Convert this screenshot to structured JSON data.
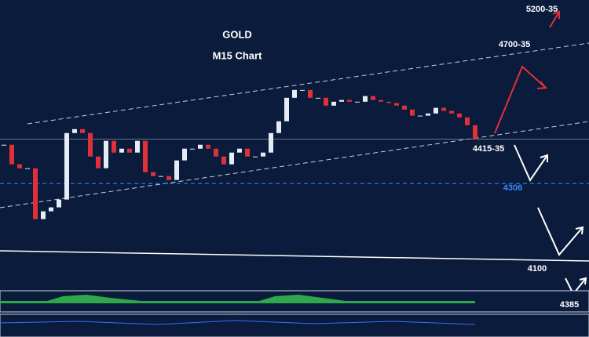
{
  "chart_data": {
    "type": "candlestick",
    "title": "GOLD",
    "subtitle": "M15 Chart",
    "values": [
      4395,
      4350,
      4341,
      4341,
      4224,
      4242,
      4251,
      4269,
      4422,
      4431,
      4422,
      4368,
      4341,
      4404,
      4377,
      4386,
      4377,
      4404,
      4332,
      4323,
      4323,
      4314,
      4359,
      4386,
      4386,
      4395,
      4386,
      4368,
      4350,
      4377,
      4386,
      4368,
      4368,
      4377,
      4422,
      4449,
      4503,
      4521,
      4521,
      4503,
      4503,
      4485,
      4494,
      4498,
      4494,
      4494,
      4507,
      4498,
      4494,
      4491,
      4485,
      4476,
      4462,
      4462,
      4467,
      4480,
      4473,
      4467,
      4458,
      4440,
      4408
    ],
    "up_color": "#e6ecf7",
    "down_color": "#e0303a",
    "ylim": [
      4061,
      4728
    ],
    "level": 4306,
    "level_color": "#3a8cff",
    "annotations": [
      "5200-35",
      "4700-35",
      "4415-35",
      "4100",
      "4385"
    ]
  }
}
